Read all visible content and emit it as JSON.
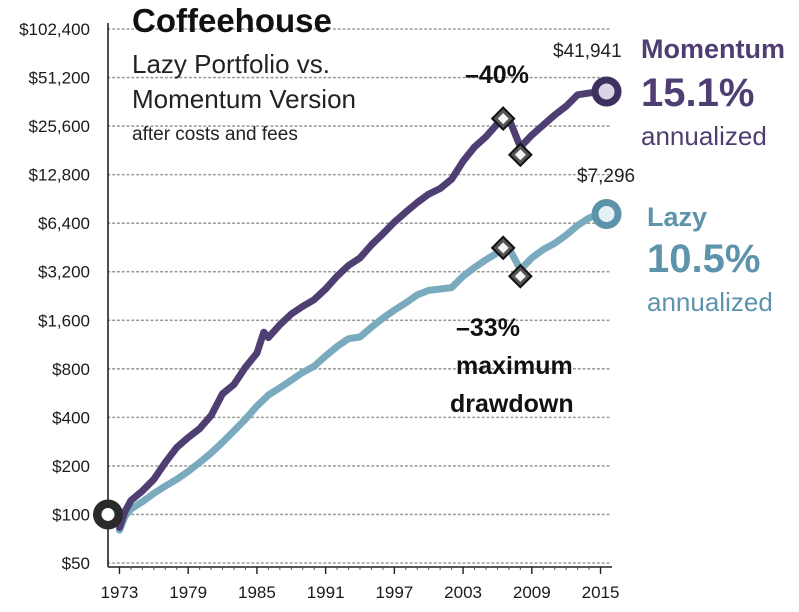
{
  "chart_data": {
    "type": "line",
    "title": "Coffeehouse",
    "subtitle_lines": [
      "Lazy Portfolio vs.",
      "Momentum Version"
    ],
    "subtitle_note": "after costs and fees",
    "y_scale": "log2",
    "ylim": [
      50,
      102400
    ],
    "y_ticks": [
      50,
      100,
      200,
      400,
      800,
      1600,
      3200,
      6400,
      12800,
      25600,
      51200,
      102400
    ],
    "y_tick_labels": [
      "$50",
      "$100",
      "$200",
      "$400",
      "$800",
      "$1,600",
      "$3,200",
      "$6,400",
      "$12,800",
      "$25,600",
      "$51,200",
      "$102,400"
    ],
    "xlim": [
      1972,
      2016
    ],
    "x_ticks": [
      1973,
      1979,
      1985,
      1991,
      1997,
      2003,
      2009,
      2015
    ],
    "x_tick_labels": [
      "1973",
      "1979",
      "1985",
      "1991",
      "1997",
      "2003",
      "2009",
      "2015"
    ],
    "grid": "horizontal dotted",
    "start": {
      "x": 1972,
      "y": 100
    },
    "series": [
      {
        "name": "Momentum",
        "color": "#4e3e72",
        "end_label": "$41,941",
        "rate": "15.1%",
        "rate_note": "annualized",
        "points": [
          [
            1973,
            83
          ],
          [
            1973.5,
            105
          ],
          [
            1974,
            122
          ],
          [
            1975,
            140
          ],
          [
            1976,
            165
          ],
          [
            1977,
            210
          ],
          [
            1978,
            260
          ],
          [
            1979,
            300
          ],
          [
            1980,
            340
          ],
          [
            1981,
            410
          ],
          [
            1982,
            560
          ],
          [
            1983,
            640
          ],
          [
            1984,
            820
          ],
          [
            1985,
            1000
          ],
          [
            1985.6,
            1350
          ],
          [
            1986,
            1250
          ],
          [
            1987,
            1500
          ],
          [
            1988,
            1750
          ],
          [
            1989,
            1950
          ],
          [
            1990,
            2150
          ],
          [
            1991,
            2500
          ],
          [
            1992,
            3000
          ],
          [
            1993,
            3500
          ],
          [
            1994,
            3900
          ],
          [
            1995,
            4700
          ],
          [
            1996,
            5500
          ],
          [
            1997,
            6500
          ],
          [
            1998,
            7500
          ],
          [
            1999,
            8600
          ],
          [
            2000,
            9700
          ],
          [
            2001,
            10500
          ],
          [
            2002,
            12000
          ],
          [
            2003,
            15500
          ],
          [
            2004,
            19000
          ],
          [
            2005,
            22000
          ],
          [
            2006,
            26500
          ],
          [
            2007,
            28500
          ],
          [
            2008,
            19000
          ],
          [
            2009,
            22500
          ],
          [
            2010,
            26000
          ],
          [
            2011,
            30000
          ],
          [
            2012,
            34000
          ],
          [
            2013,
            40000
          ],
          [
            2014,
            41000
          ],
          [
            2015,
            41941
          ]
        ]
      },
      {
        "name": "Lazy",
        "color": "#7aaabe",
        "end_label": "$7,296",
        "rate": "10.5%",
        "rate_note": "annualized",
        "points": [
          [
            1973,
            80
          ],
          [
            1973.5,
            98
          ],
          [
            1974,
            108
          ],
          [
            1975,
            120
          ],
          [
            1976,
            135
          ],
          [
            1977,
            150
          ],
          [
            1978,
            165
          ],
          [
            1979,
            185
          ],
          [
            1980,
            210
          ],
          [
            1981,
            240
          ],
          [
            1982,
            280
          ],
          [
            1983,
            330
          ],
          [
            1984,
            390
          ],
          [
            1985,
            470
          ],
          [
            1986,
            550
          ],
          [
            1987,
            610
          ],
          [
            1988,
            680
          ],
          [
            1989,
            760
          ],
          [
            1990,
            830
          ],
          [
            1991,
            960
          ],
          [
            1992,
            1100
          ],
          [
            1993,
            1230
          ],
          [
            1994,
            1260
          ],
          [
            1995,
            1450
          ],
          [
            1996,
            1650
          ],
          [
            1997,
            1850
          ],
          [
            1998,
            2050
          ],
          [
            1999,
            2300
          ],
          [
            2000,
            2450
          ],
          [
            2001,
            2500
          ],
          [
            2002,
            2550
          ],
          [
            2003,
            3000
          ],
          [
            2004,
            3400
          ],
          [
            2005,
            3800
          ],
          [
            2006,
            4200
          ],
          [
            2007,
            4500
          ],
          [
            2008,
            3300
          ],
          [
            2009,
            3900
          ],
          [
            2010,
            4400
          ],
          [
            2011,
            4800
          ],
          [
            2012,
            5400
          ],
          [
            2013,
            6200
          ],
          [
            2014,
            6900
          ],
          [
            2015,
            7296
          ]
        ]
      }
    ],
    "drawdowns": [
      {
        "series": "Momentum",
        "label": "–40%",
        "peak": [
          2006.5,
          28500
        ],
        "trough": [
          2008,
          17000
        ]
      },
      {
        "series": "Lazy",
        "label": "–33%",
        "peak": [
          2006.5,
          4500
        ],
        "trough": [
          2008,
          3000
        ]
      }
    ],
    "drawdown_note_lines": [
      "maximum",
      "drawdown"
    ]
  }
}
